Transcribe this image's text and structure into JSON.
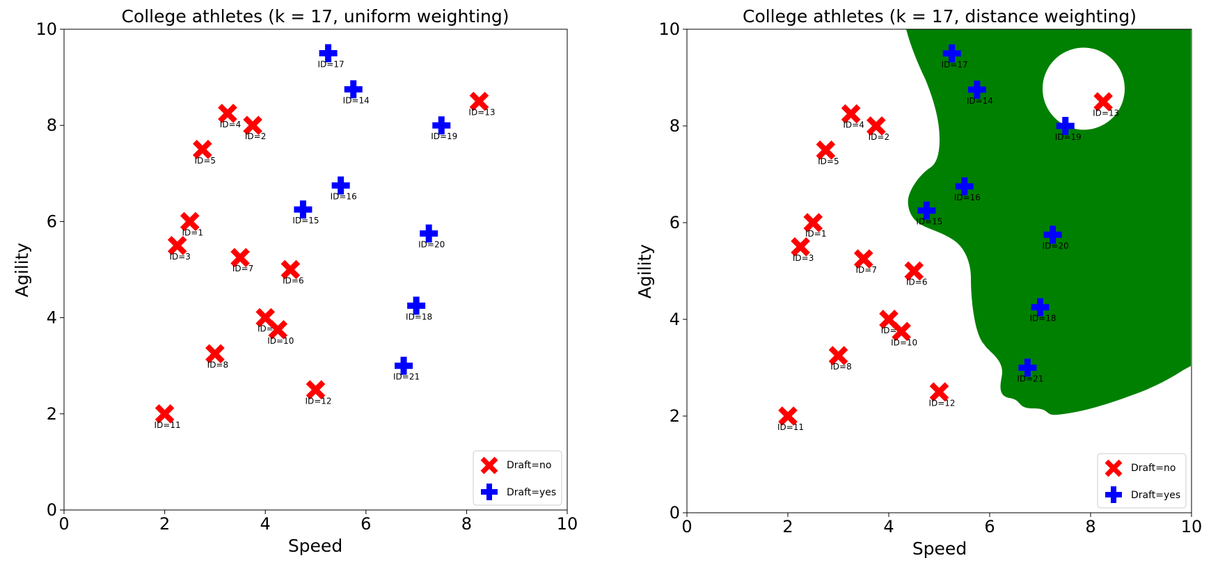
{
  "chart_data": [
    {
      "type": "scatter",
      "title": "College athletes (k = 17, uniform weighting)",
      "xlabel": "Speed",
      "ylabel": "Agility",
      "xlim": [
        0,
        10
      ],
      "ylim": [
        0,
        10
      ],
      "xticks": [
        0,
        2,
        4,
        6,
        8,
        10
      ],
      "yticks": [
        0,
        2,
        4,
        6,
        8,
        10
      ],
      "grid": false,
      "legend_position": "bottom-right",
      "decision_region": "none",
      "series": [
        {
          "name": "Draft=no",
          "marker": "x",
          "color": "#ff0000",
          "points": [
            {
              "id": "ID=1",
              "x": 2.5,
              "y": 6.0
            },
            {
              "id": "ID=2",
              "x": 3.75,
              "y": 8.0
            },
            {
              "id": "ID=3",
              "x": 2.25,
              "y": 5.5
            },
            {
              "id": "ID=4",
              "x": 3.25,
              "y": 8.25
            },
            {
              "id": "ID=5",
              "x": 2.75,
              "y": 7.5
            },
            {
              "id": "ID=6",
              "x": 4.5,
              "y": 5.0
            },
            {
              "id": "ID=7",
              "x": 3.5,
              "y": 5.25
            },
            {
              "id": "ID=8",
              "x": 3.0,
              "y": 3.25
            },
            {
              "id": "ID=9",
              "x": 4.0,
              "y": 4.0
            },
            {
              "id": "ID=10",
              "x": 4.25,
              "y": 3.75
            },
            {
              "id": "ID=11",
              "x": 2.0,
              "y": 2.0
            },
            {
              "id": "ID=12",
              "x": 5.0,
              "y": 2.5
            },
            {
              "id": "ID=13",
              "x": 8.25,
              "y": 8.5
            }
          ]
        },
        {
          "name": "Draft=yes",
          "marker": "plus",
          "color": "#0000ff",
          "points": [
            {
              "id": "ID=14",
              "x": 5.75,
              "y": 8.75
            },
            {
              "id": "ID=15",
              "x": 4.75,
              "y": 6.25
            },
            {
              "id": "ID=16",
              "x": 5.5,
              "y": 6.75
            },
            {
              "id": "ID=17",
              "x": 5.25,
              "y": 9.5
            },
            {
              "id": "ID=18",
              "x": 7.0,
              "y": 4.25
            },
            {
              "id": "ID=19",
              "x": 7.5,
              "y": 8.0
            },
            {
              "id": "ID=20",
              "x": 7.25,
              "y": 5.75
            },
            {
              "id": "ID=21",
              "x": 6.75,
              "y": 3.0
            }
          ]
        }
      ]
    },
    {
      "type": "scatter",
      "title": "College athletes (k = 17, distance weighting)",
      "xlabel": "Speed",
      "ylabel": "Agility",
      "xlim": [
        0,
        10
      ],
      "ylim": [
        0,
        10
      ],
      "xticks": [
        0,
        2,
        4,
        6,
        8,
        10
      ],
      "yticks": [
        0,
        2,
        4,
        6,
        8,
        10
      ],
      "grid": false,
      "legend_position": "bottom-right",
      "decision_region": "green region = Draft=yes",
      "region_color": "#008000",
      "series": [
        {
          "name": "Draft=no",
          "marker": "x",
          "color": "#ff0000",
          "points": [
            {
              "id": "ID=1",
              "x": 2.5,
              "y": 6.0
            },
            {
              "id": "ID=2",
              "x": 3.75,
              "y": 8.0
            },
            {
              "id": "ID=3",
              "x": 2.25,
              "y": 5.5
            },
            {
              "id": "ID=4",
              "x": 3.25,
              "y": 8.25
            },
            {
              "id": "ID=5",
              "x": 2.75,
              "y": 7.5
            },
            {
              "id": "ID=6",
              "x": 4.5,
              "y": 5.0
            },
            {
              "id": "ID=7",
              "x": 3.5,
              "y": 5.25
            },
            {
              "id": "ID=8",
              "x": 3.0,
              "y": 3.25
            },
            {
              "id": "ID=9",
              "x": 4.0,
              "y": 4.0
            },
            {
              "id": "ID=10",
              "x": 4.25,
              "y": 3.75
            },
            {
              "id": "ID=11",
              "x": 2.0,
              "y": 2.0
            },
            {
              "id": "ID=12",
              "x": 5.0,
              "y": 2.5
            },
            {
              "id": "ID=13",
              "x": 8.25,
              "y": 8.5
            }
          ]
        },
        {
          "name": "Draft=yes",
          "marker": "plus",
          "color": "#0000ff",
          "points": [
            {
              "id": "ID=14",
              "x": 5.75,
              "y": 8.75
            },
            {
              "id": "ID=15",
              "x": 4.75,
              "y": 6.25
            },
            {
              "id": "ID=16",
              "x": 5.5,
              "y": 6.75
            },
            {
              "id": "ID=17",
              "x": 5.25,
              "y": 9.5
            },
            {
              "id": "ID=18",
              "x": 7.0,
              "y": 4.25
            },
            {
              "id": "ID=19",
              "x": 7.5,
              "y": 8.0
            },
            {
              "id": "ID=20",
              "x": 7.25,
              "y": 5.75
            },
            {
              "id": "ID=21",
              "x": 6.75,
              "y": 3.0
            }
          ]
        }
      ]
    }
  ]
}
